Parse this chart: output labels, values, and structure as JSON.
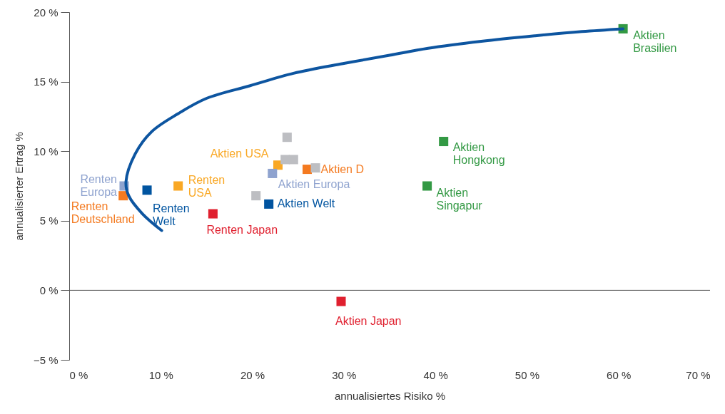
{
  "chart_data": {
    "type": "scatter",
    "xlabel": "annualisiertes Risiko %",
    "ylabel": "annualisierter Ertrag %",
    "marker": "square",
    "xlim": [
      0,
      70
    ],
    "ylim": [
      -5,
      20
    ],
    "xticks": [
      {
        "value": 0,
        "label": "0 %"
      },
      {
        "value": 10,
        "label": "10 %"
      },
      {
        "value": 20,
        "label": "20 %"
      },
      {
        "value": 30,
        "label": "30 %"
      },
      {
        "value": 40,
        "label": "40 %"
      },
      {
        "value": 50,
        "label": "50 %"
      },
      {
        "value": 60,
        "label": "60 %"
      },
      {
        "value": 70,
        "label": "70 %"
      }
    ],
    "yticks": [
      {
        "value": -5,
        "label": "−5 %"
      },
      {
        "value": 0,
        "label": "0 %"
      },
      {
        "value": 5,
        "label": "5 %"
      },
      {
        "value": 10,
        "label": "10 %"
      },
      {
        "value": 15,
        "label": "15 %"
      },
      {
        "value": 20,
        "label": "20 %"
      }
    ],
    "ref_lines": [
      {
        "axis": "y",
        "value": 0,
        "color": "#555555"
      }
    ],
    "series": [
      {
        "name": "Renten\nEuropa",
        "color": "#8fa3cf",
        "x": [
          6.0
        ],
        "values": [
          7.5
        ]
      },
      {
        "name": "Renten\nDeutschland",
        "color": "#f47a20",
        "x": [
          5.9
        ],
        "values": [
          6.8
        ]
      },
      {
        "name": "Renten\nWelt",
        "color": "#0054a0",
        "x": [
          8.5
        ],
        "values": [
          7.2
        ]
      },
      {
        "name": "Renten\nUSA",
        "color": "#f9a825",
        "x": [
          11.9
        ],
        "values": [
          7.5
        ]
      },
      {
        "name": "Renten Japan",
        "color": "#e0202f",
        "x": [
          15.7
        ],
        "values": [
          5.5
        ]
      },
      {
        "name": "Aktien USA",
        "color": "#f9a825",
        "x": [
          22.8
        ],
        "values": [
          9.0
        ]
      },
      {
        "name": "Aktien Europa",
        "color": "#8fa3cf",
        "x": [
          22.2
        ],
        "values": [
          8.4
        ]
      },
      {
        "name": "Aktien D",
        "color": "#f47a20",
        "x": [
          26.0
        ],
        "values": [
          8.7
        ]
      },
      {
        "name": "Aktien Welt",
        "color": "#0054a0",
        "x": [
          21.8
        ],
        "values": [
          6.2
        ]
      },
      {
        "name": "Aktien Japan",
        "color": "#e0202f",
        "x": [
          29.7
        ],
        "values": [
          -0.8
        ]
      },
      {
        "name": "Aktien\nSingapur",
        "color": "#339944",
        "x": [
          39.1
        ],
        "values": [
          7.5
        ]
      },
      {
        "name": "Aktien\nHongkong",
        "color": "#339944",
        "x": [
          40.9
        ],
        "values": [
          10.7
        ]
      },
      {
        "name": "Aktien\nBrasilien",
        "color": "#339944",
        "x": [
          60.5
        ],
        "values": [
          18.8
        ]
      },
      {
        "color": "#bdbec2",
        "x": [
          23.8,
          23.6,
          24.5,
          26.9,
          20.4
        ],
        "values": [
          11.0,
          9.4,
          9.4,
          8.8,
          6.8
        ]
      },
      {
        "type": "line",
        "marker": "none",
        "color": "#0d55a0",
        "x": [
          10.1,
          8.0,
          6.5,
          6.2,
          7.2,
          9.0,
          11.9,
          15.0,
          19.7,
          24.5,
          29.9,
          35.0,
          39.2,
          45.0,
          50.9,
          56.0,
          60.5
        ],
        "values": [
          4.3,
          5.5,
          6.8,
          7.8,
          9.8,
          11.4,
          12.7,
          13.8,
          14.7,
          15.6,
          16.3,
          16.9,
          17.4,
          17.9,
          18.3,
          18.6,
          18.8
        ]
      }
    ]
  }
}
